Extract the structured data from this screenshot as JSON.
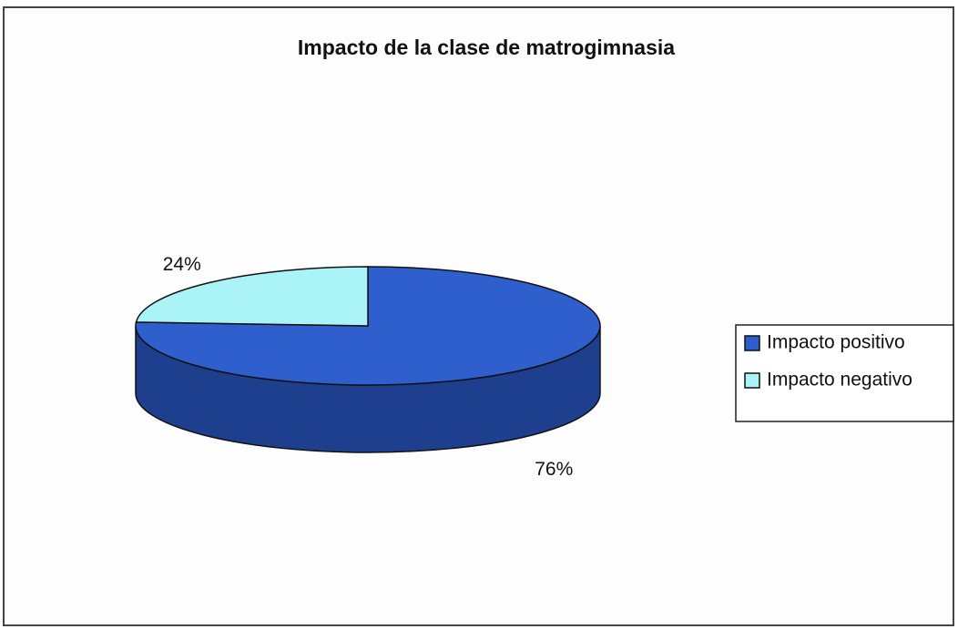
{
  "chart_data": {
    "type": "pie",
    "title": "Impacto de la clase de matrogimnasia",
    "categories": [
      "Impacto positivo",
      "Impacto negativo"
    ],
    "values": [
      76,
      24
    ],
    "value_labels": [
      "76%",
      "24%"
    ],
    "colors": [
      "#2e5fcc",
      "#aaf4f8"
    ],
    "side_colors": [
      "#1d3f8e",
      "#6fb8bd"
    ],
    "legend": "right"
  }
}
